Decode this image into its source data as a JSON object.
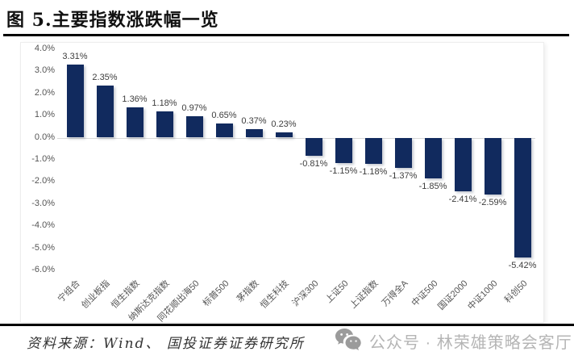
{
  "title": "图 5.主要指数涨跌幅一览",
  "source_note": "资料来源：Wind、 国投证券证券研究所",
  "watermark": {
    "icon": "wechat-icon",
    "text": "公众号 · 林荣雄策略会客厅"
  },
  "colors": {
    "bar": "#112a5e",
    "zero_line": "#d8d8d8",
    "axis_text": "#555555",
    "value_text": "#3d3d3d",
    "rule": "#000000",
    "watermark_text": "#b5b5b5"
  },
  "chart_data": {
    "type": "bar",
    "title": "",
    "xlabel": "",
    "ylabel": "",
    "categories": [
      "宁组合",
      "创业板指",
      "恒生指数",
      "纳斯达克指数",
      "同花顺出海50",
      "标普500",
      "茅指数",
      "恒生科技",
      "沪深300",
      "上证50",
      "上证指数",
      "万得全A",
      "中证500",
      "国证2000",
      "中证1000",
      "科创50"
    ],
    "values": [
      3.31,
      2.35,
      1.36,
      1.18,
      0.97,
      0.65,
      0.37,
      0.23,
      -0.81,
      -1.15,
      -1.18,
      -1.37,
      -1.85,
      -2.41,
      -2.59,
      -5.42
    ],
    "value_labels": [
      "3.31%",
      "2.35%",
      "1.36%",
      "1.18%",
      "0.97%",
      "0.65%",
      "0.37%",
      "0.23%",
      "-0.81%",
      "-1.15%",
      "-1.18%",
      "-1.37%",
      "-1.85%",
      "-2.41%",
      "-2.59%",
      "-5.42%"
    ],
    "ylim": [
      -6,
      4
    ],
    "ytick_step": 1,
    "yticks": [
      "4.0%",
      "3.0%",
      "2.0%",
      "1.0%",
      "0.0%",
      "-1.0%",
      "-2.0%",
      "-3.0%",
      "-4.0%",
      "-5.0%",
      "-6.0%"
    ],
    "grid": "zero-line-only",
    "legend": "none"
  }
}
